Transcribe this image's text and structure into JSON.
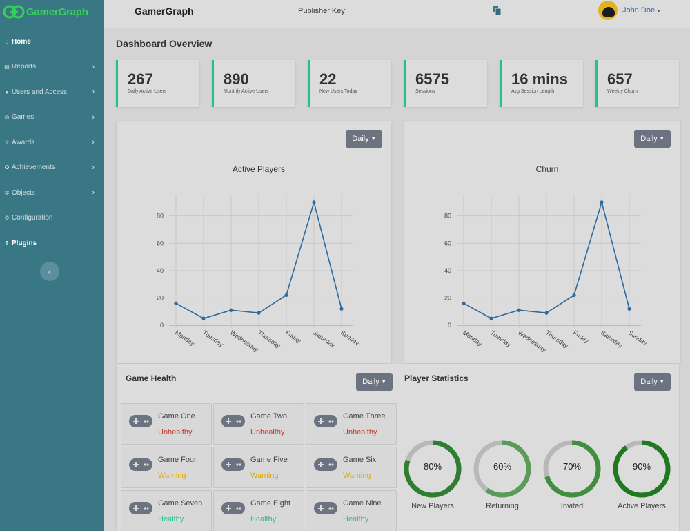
{
  "brand": {
    "name": "GamerGraph"
  },
  "topbar": {
    "title": "GamerGraph",
    "publisher_key_label": "Publisher Key:",
    "user_name": "John Doe",
    "copy_icon": "copy-icon"
  },
  "sidebar": {
    "items": [
      {
        "label": "Home",
        "icon": "home-icon",
        "glyph": "⌂",
        "chevron": false,
        "bold": true
      },
      {
        "label": "Reports",
        "icon": "reports-icon",
        "glyph": "▤",
        "chevron": true,
        "bold": false
      },
      {
        "label": "Users and Access",
        "icon": "user-icon",
        "glyph": "●",
        "chevron": true,
        "bold": false
      },
      {
        "label": "Games",
        "icon": "gamepad-icon",
        "glyph": "◎",
        "chevron": true,
        "bold": false
      },
      {
        "label": "Awards",
        "icon": "trophy-icon",
        "glyph": "♕",
        "chevron": true,
        "bold": false
      },
      {
        "label": "Achievements",
        "icon": "achievement-icon",
        "glyph": "✪",
        "chevron": true,
        "bold": false
      },
      {
        "label": "Objects",
        "icon": "objects-icon",
        "glyph": "✲",
        "chevron": true,
        "bold": false
      },
      {
        "label": "Configuration",
        "icon": "gear-icon",
        "glyph": "⚙",
        "chevron": false,
        "bold": false
      },
      {
        "label": "Plugins",
        "icon": "download-icon",
        "glyph": "⇩",
        "chevron": false,
        "bold": true
      }
    ],
    "collapse_glyph": "‹"
  },
  "main": {
    "title": "Dashboard Overview",
    "stats": [
      {
        "value": "267",
        "label": "Daily Active Users"
      },
      {
        "value": "890",
        "label": "Monthly Active Users"
      },
      {
        "value": "22",
        "label": "New Users Today"
      },
      {
        "value": "6575",
        "label": "Sessions"
      },
      {
        "value": "16 mins",
        "label": "Avg Session Length"
      },
      {
        "value": "657",
        "label": "Weekly Churn"
      }
    ],
    "dropdown_label": "Daily",
    "game_health": {
      "title": "Game Health",
      "games": [
        {
          "name": "Game One",
          "status": "Unhealthy"
        },
        {
          "name": "Game Two",
          "status": "Unhealthy"
        },
        {
          "name": "Game Three",
          "status": "Unhealthy"
        },
        {
          "name": "Game Four",
          "status": "Warning"
        },
        {
          "name": "Game Five",
          "status": "Warning"
        },
        {
          "name": "Game Six",
          "status": "Warning"
        },
        {
          "name": "Game Seven",
          "status": "Healthy"
        },
        {
          "name": "Game Eight",
          "status": "Healthy"
        },
        {
          "name": "Game Nine",
          "status": "Healthy"
        }
      ],
      "status_colors": {
        "Unhealthy": "#c0392b",
        "Warning": "#e0a800",
        "Healthy": "#2bbf88"
      }
    },
    "player_stats": {
      "title": "Player Statistics",
      "rings": [
        {
          "label": "New Players",
          "percent": 80,
          "display": "80%",
          "color": "#2e7d32"
        },
        {
          "label": "Returning",
          "percent": 60,
          "display": "60%",
          "color": "#5a9a5a"
        },
        {
          "label": "Invited",
          "percent": 70,
          "display": "70%",
          "color": "#3f8f3f"
        },
        {
          "label": "Active Players",
          "percent": 90,
          "display": "90%",
          "color": "#1f7a1f"
        }
      ],
      "track_color": "#b8b8b8"
    }
  },
  "chart_data": [
    {
      "type": "line",
      "title": "Active Players",
      "categories": [
        "Monday",
        "Tuesday",
        "Wednesday",
        "Thursday",
        "Friday",
        "Saturday",
        "Sunday"
      ],
      "values": [
        16,
        5,
        11,
        9,
        22,
        90,
        12
      ],
      "yticks": [
        0,
        20,
        40,
        60,
        80
      ],
      "ylim": [
        0,
        95
      ],
      "grid": true,
      "color": "#2c6aa0"
    },
    {
      "type": "line",
      "title": "Churn",
      "categories": [
        "Monday",
        "Tuesday",
        "Wednesday",
        "Thursday",
        "Friday",
        "Saturday",
        "Sunday"
      ],
      "values": [
        16,
        5,
        11,
        9,
        22,
        90,
        12
      ],
      "yticks": [
        0,
        20,
        40,
        60,
        80
      ],
      "ylim": [
        0,
        95
      ],
      "grid": true,
      "color": "#2c6aa0"
    }
  ]
}
